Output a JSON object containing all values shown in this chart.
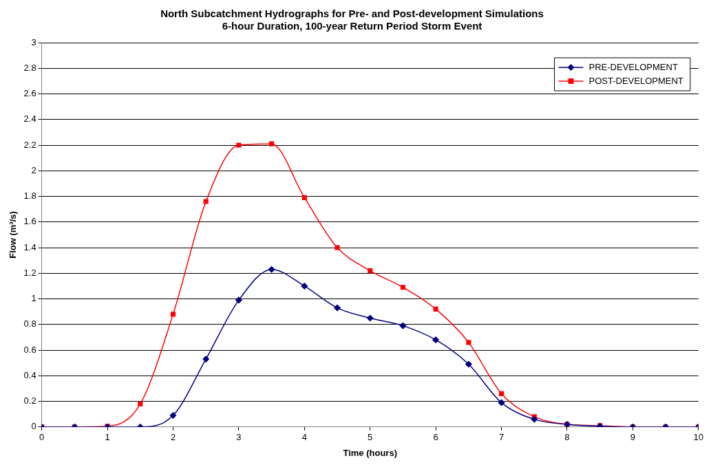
{
  "chart_data": {
    "type": "line",
    "title": "North Subcatchment Hydrographs for Pre- and Post-development Simulations",
    "subtitle": "6-hour Duration, 100-year Return Period Storm Event",
    "xlabel": "Time (hours)",
    "ylabel": "Flow (m³/s)",
    "x": [
      0,
      0.5,
      1,
      1.5,
      2,
      2.5,
      3,
      3.5,
      4,
      4.5,
      5,
      5.5,
      6,
      6.5,
      7,
      7.5,
      8,
      8.5,
      9,
      9.5,
      10
    ],
    "series": [
      {
        "name": "PRE-DEVELOPMENT",
        "color": "#000080",
        "marker": "diamond",
        "values": [
          0,
          0,
          0,
          0,
          0.09,
          0.53,
          0.99,
          1.23,
          1.1,
          0.93,
          0.85,
          0.79,
          0.68,
          0.49,
          0.19,
          0.06,
          0.02,
          0.005,
          0,
          0,
          0
        ]
      },
      {
        "name": "POST-DEVELOPMENT",
        "color": "#ff0000",
        "marker": "square",
        "values": [
          0,
          0,
          0.005,
          0.18,
          0.88,
          1.76,
          2.2,
          2.21,
          1.79,
          1.4,
          1.22,
          1.09,
          0.92,
          0.66,
          0.26,
          0.08,
          0.02,
          0.01,
          0,
          0,
          0
        ]
      }
    ],
    "xlim": [
      0,
      10
    ],
    "xticks": [
      0,
      1,
      2,
      3,
      4,
      5,
      6,
      7,
      8,
      9,
      10
    ],
    "ylim": [
      0,
      3
    ],
    "yticks": [
      0,
      0.2,
      0.4,
      0.6,
      0.8,
      1,
      1.2,
      1.4,
      1.6,
      1.8,
      2,
      2.2,
      2.4,
      2.6,
      2.8,
      3
    ],
    "grid": "y",
    "legend": "top right",
    "line_style": "solid"
  }
}
